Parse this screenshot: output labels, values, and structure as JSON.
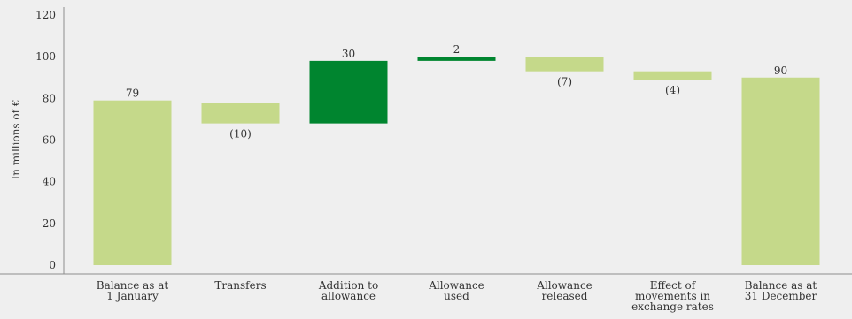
{
  "chart_data": {
    "type": "bar",
    "subtype": "waterfall",
    "ylabel": "In millions of €",
    "ylim": [
      0,
      120
    ],
    "yticks": [
      0,
      20,
      40,
      60,
      80,
      100,
      120
    ],
    "grid": false,
    "legend": "none",
    "colors": {
      "light": "#c5d98a",
      "dark": "#00852f",
      "axis": "#8c8c8c"
    },
    "categories": [
      [
        "Balance as at",
        "1 January"
      ],
      [
        "Transfers"
      ],
      [
        "Addition to",
        "allowance"
      ],
      [
        "Allowance",
        "used"
      ],
      [
        "Allowance",
        "released"
      ],
      [
        "Effect of",
        "movements in",
        "exchange rates"
      ],
      [
        "Balance as at",
        "31 December"
      ]
    ],
    "bars": [
      {
        "base": 0,
        "top": 79,
        "label": "79",
        "color": "light",
        "label_pos": "above"
      },
      {
        "base": 68,
        "top": 78,
        "label": "(10)",
        "color": "light",
        "label_pos": "below"
      },
      {
        "base": 68,
        "top": 98,
        "label": "30",
        "color": "dark",
        "label_pos": "above"
      },
      {
        "base": 98,
        "top": 100,
        "label": "2",
        "color": "dark",
        "label_pos": "above"
      },
      {
        "base": 93,
        "top": 100,
        "label": "(7)",
        "color": "light",
        "label_pos": "below"
      },
      {
        "base": 89,
        "top": 93,
        "label": "(4)",
        "color": "light",
        "label_pos": "below"
      },
      {
        "base": 0,
        "top": 90,
        "label": "90",
        "color": "light",
        "label_pos": "above"
      }
    ]
  }
}
